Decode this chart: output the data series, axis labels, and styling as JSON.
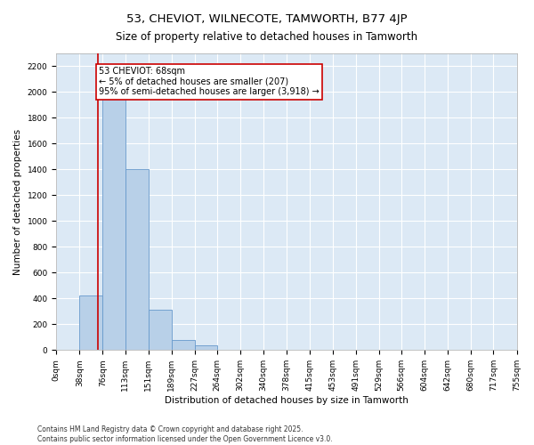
{
  "title": "53, CHEVIOT, WILNECOTE, TAMWORTH, B77 4JP",
  "subtitle": "Size of property relative to detached houses in Tamworth",
  "xlabel": "Distribution of detached houses by size in Tamworth",
  "ylabel": "Number of detached properties",
  "bar_color": "#b8d0e8",
  "bar_edge_color": "#6699cc",
  "background_color": "#dce9f5",
  "annotation_text": "53 CHEVIOT: 68sqm\n← 5% of detached houses are smaller (207)\n95% of semi-detached houses are larger (3,918) →",
  "annotation_box_color": "#ffffff",
  "annotation_box_edge": "#cc0000",
  "vline_x": 68,
  "vline_color": "#cc0000",
  "bins": [
    0,
    38,
    76,
    113,
    151,
    189,
    227,
    264,
    302,
    340,
    378,
    415,
    453,
    491,
    529,
    566,
    604,
    642,
    680,
    717,
    755
  ],
  "bar_heights": [
    5,
    420,
    2020,
    1400,
    310,
    80,
    35,
    5,
    0,
    0,
    0,
    0,
    0,
    0,
    0,
    0,
    0,
    0,
    0,
    0
  ],
  "ylim": [
    0,
    2300
  ],
  "yticks": [
    0,
    200,
    400,
    600,
    800,
    1000,
    1200,
    1400,
    1600,
    1800,
    2000,
    2200
  ],
  "footer": "Contains HM Land Registry data © Crown copyright and database right 2025.\nContains public sector information licensed under the Open Government Licence v3.0.",
  "title_fontsize": 9.5,
  "subtitle_fontsize": 8.5,
  "xlabel_fontsize": 7.5,
  "ylabel_fontsize": 7.5,
  "tick_fontsize": 6.5,
  "annotation_fontsize": 7,
  "footer_fontsize": 5.5
}
